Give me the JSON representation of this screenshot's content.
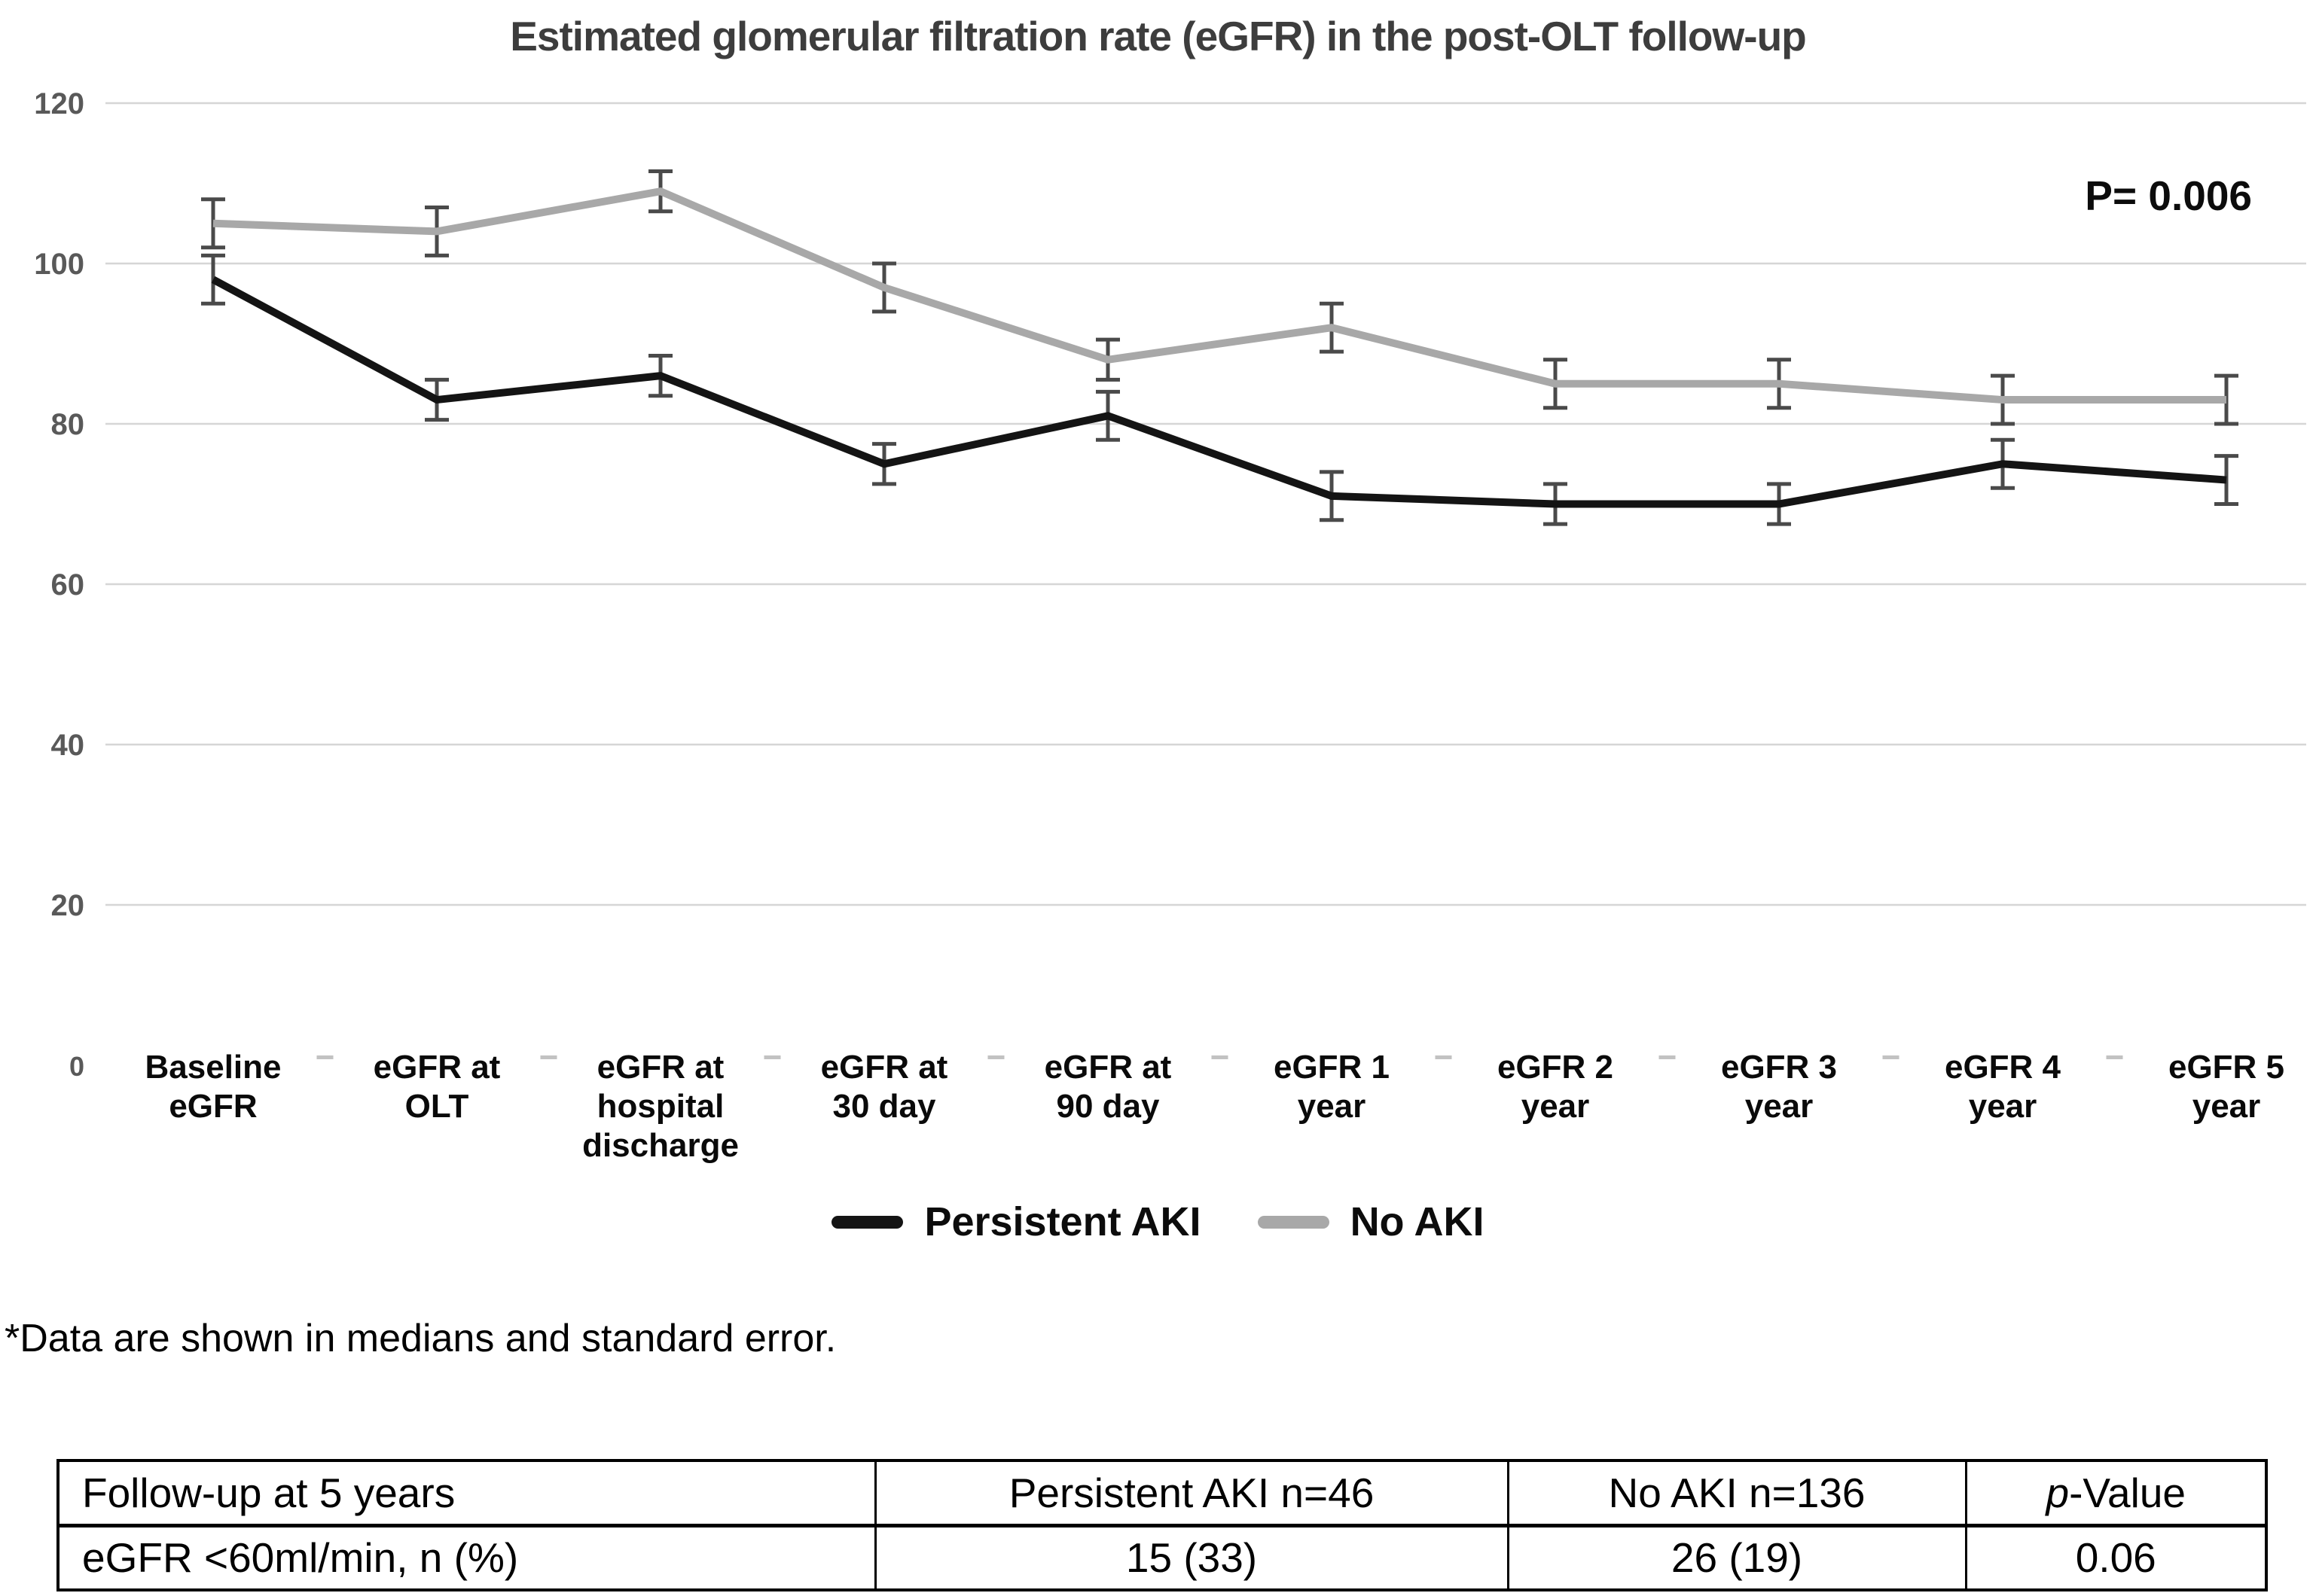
{
  "chart_data": {
    "type": "line",
    "title": "Estimated glomerular filtration rate (eGFR) in the post-OLT follow-up",
    "annotation": "P= 0.006",
    "xlabel": "",
    "ylabel": "",
    "ylim": [
      0,
      120
    ],
    "yticks": [
      0,
      20,
      40,
      60,
      80,
      100,
      120
    ],
    "grid": true,
    "legend_position": "bottom",
    "error_bars": "standard error",
    "error_color": "#4a4a4a",
    "categories": [
      "Baseline\neGFR",
      "eGFR at\nOLT",
      "eGFR at\nhospital\ndischarge",
      "eGFR at\n30 day",
      "eGFR at\n90 day",
      "eGFR 1\nyear",
      "eGFR 2\nyear",
      "eGFR 3\nyear",
      "eGFR 4\nyear",
      "eGFR 5\nyear"
    ],
    "series": [
      {
        "name": "Persistent AKI",
        "color": "#141414",
        "values": [
          98,
          83,
          86,
          75,
          81,
          71,
          70,
          70,
          75,
          73
        ],
        "se": [
          3,
          2.5,
          2.5,
          2.5,
          3,
          3,
          2.5,
          2.5,
          3,
          3
        ]
      },
      {
        "name": "No AKI",
        "color": "#a8a8a8",
        "values": [
          105,
          104,
          109,
          97,
          88,
          92,
          85,
          85,
          83,
          83
        ],
        "se": [
          3,
          3,
          2.5,
          3,
          2.5,
          3,
          3,
          3,
          3,
          3
        ]
      }
    ]
  },
  "footnote": "*Data are shown in medians and standard error.",
  "table": {
    "headers": [
      "Follow-up at 5 years",
      "Persistent AKI n=46",
      "No AKI n=136"
    ],
    "p_header": {
      "italic": "p",
      "rest": "-Value"
    },
    "rows": [
      [
        "eGFR <60ml/min, n (%)",
        "15 (33)",
        "26 (19)",
        "0.06"
      ]
    ]
  }
}
